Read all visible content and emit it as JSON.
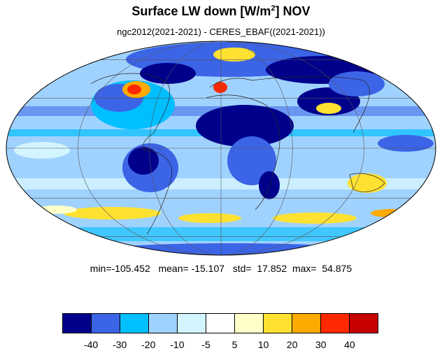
{
  "title": {
    "main": "Surface LW down [W/m",
    "superscript": "2",
    "suffix": "]  NOV"
  },
  "subtitle": "ngc2012(2021-2021) - CERES_EBAF((2021-2021))",
  "stats": {
    "min_label": "min=",
    "min": "-105.452",
    "mean_label": "mean=",
    "mean": "-15.107",
    "std_label": "std=",
    "std": "17.852",
    "max_label": "max=",
    "max": "54.875"
  },
  "colorbar": {
    "colors": [
      "#00008b",
      "#3c64e6",
      "#00bfff",
      "#a0d2ff",
      "#d2f5ff",
      "#ffffff",
      "#ffffc8",
      "#ffe132",
      "#ffaa00",
      "#ff2800",
      "#c80000"
    ],
    "labels": [
      "-40",
      "-30",
      "-20",
      "-10",
      "-5",
      "5",
      "10",
      "20",
      "30",
      "40"
    ]
  },
  "map": {
    "projection": "mollweide",
    "background_color": "#a0d2ff"
  }
}
